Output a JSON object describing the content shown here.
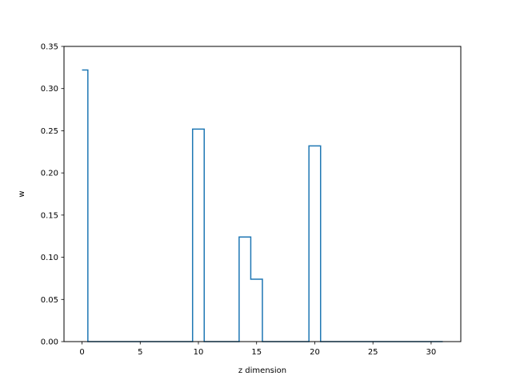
{
  "chart_data": {
    "type": "line",
    "drawstyle": "steps-mid",
    "title": "",
    "xlabel": "z dimension",
    "ylabel": "w",
    "xlim": [
      -1.55,
      32.55
    ],
    "ylim": [
      0.0,
      0.35
    ],
    "xticks": [
      0,
      5,
      10,
      15,
      20,
      25,
      30
    ],
    "yticks": [
      0.0,
      0.05,
      0.1,
      0.15,
      0.2,
      0.25,
      0.3,
      0.35
    ],
    "xtick_labels": [
      "0",
      "5",
      "10",
      "15",
      "20",
      "25",
      "30"
    ],
    "ytick_labels": [
      "0.00",
      "0.05",
      "0.10",
      "0.15",
      "0.20",
      "0.25",
      "0.30",
      "0.35"
    ],
    "grid": false,
    "series": [
      {
        "color": "#1f77b4",
        "x": [
          0,
          1,
          2,
          3,
          4,
          5,
          6,
          7,
          8,
          9,
          10,
          11,
          12,
          13,
          14,
          15,
          16,
          17,
          18,
          19,
          20,
          21,
          22,
          23,
          24,
          25,
          26,
          27,
          28,
          29,
          30,
          31
        ],
        "values": [
          0.322,
          0,
          0,
          0,
          0,
          0,
          0,
          0,
          0,
          0,
          0.252,
          0,
          0,
          0,
          0.124,
          0.074,
          0,
          0,
          0,
          0,
          0.232,
          0,
          0,
          0,
          0,
          0,
          0,
          0,
          0,
          0,
          0,
          0
        ]
      }
    ]
  }
}
